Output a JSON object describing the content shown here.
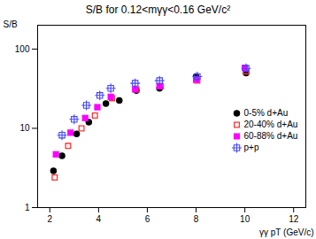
{
  "chart_data": {
    "type": "scatter",
    "title": "S/B for 0.12<mγγ<0.16 GeV/c²",
    "xlabel": "γγ pT (GeV/c)",
    "ylabel": "S/B",
    "xlim": [
      1.5,
      12.5
    ],
    "ylim": [
      1.0,
      200
    ],
    "xticks": [
      2,
      4,
      6,
      8,
      10,
      12
    ],
    "yticks": [
      1,
      10,
      100
    ],
    "log": "y",
    "grid": false,
    "legend": "right",
    "series": [
      {
        "name": "0-5% d+Au",
        "color": "#000000",
        "marker": "circle",
        "x": [
          2.15,
          2.5,
          3.1,
          3.6,
          4.3,
          4.85,
          5.55,
          6.5,
          8.0,
          10.05
        ],
        "values": [
          2.9,
          4.5,
          8.5,
          12.0,
          20.5,
          22.5,
          30.0,
          32.0,
          45.0,
          50.0
        ]
      },
      {
        "name": "20-40% d+Au",
        "color": "#ff3333",
        "marker": "square-open",
        "x": [
          2.2,
          2.75,
          3.3,
          3.85,
          4.55,
          5.55,
          6.55,
          8.05,
          10.05
        ],
        "values": [
          2.4,
          6.0,
          10.0,
          14.5,
          24.0,
          31.0,
          34.0,
          40.0,
          52.0
        ]
      },
      {
        "name": "60-88% d+Au",
        "color": "#ff00ff",
        "marker": "square",
        "x": [
          2.25,
          2.85,
          3.45,
          3.95,
          4.5,
          5.5,
          6.5,
          8.0,
          10.0
        ],
        "values": [
          4.7,
          8.8,
          13.5,
          18.5,
          25.0,
          31.0,
          34.0,
          41.0,
          58.0
        ]
      },
      {
        "name": "p+p",
        "color": "#4444ff",
        "marker": "square-plus",
        "x": [
          2.5,
          3.0,
          3.5,
          4.05,
          4.5,
          5.5,
          6.5,
          8.05,
          10.05
        ],
        "values": [
          8.2,
          13.0,
          19.5,
          26.0,
          32.0,
          37.0,
          40.0,
          45.0,
          57.0
        ]
      }
    ]
  }
}
